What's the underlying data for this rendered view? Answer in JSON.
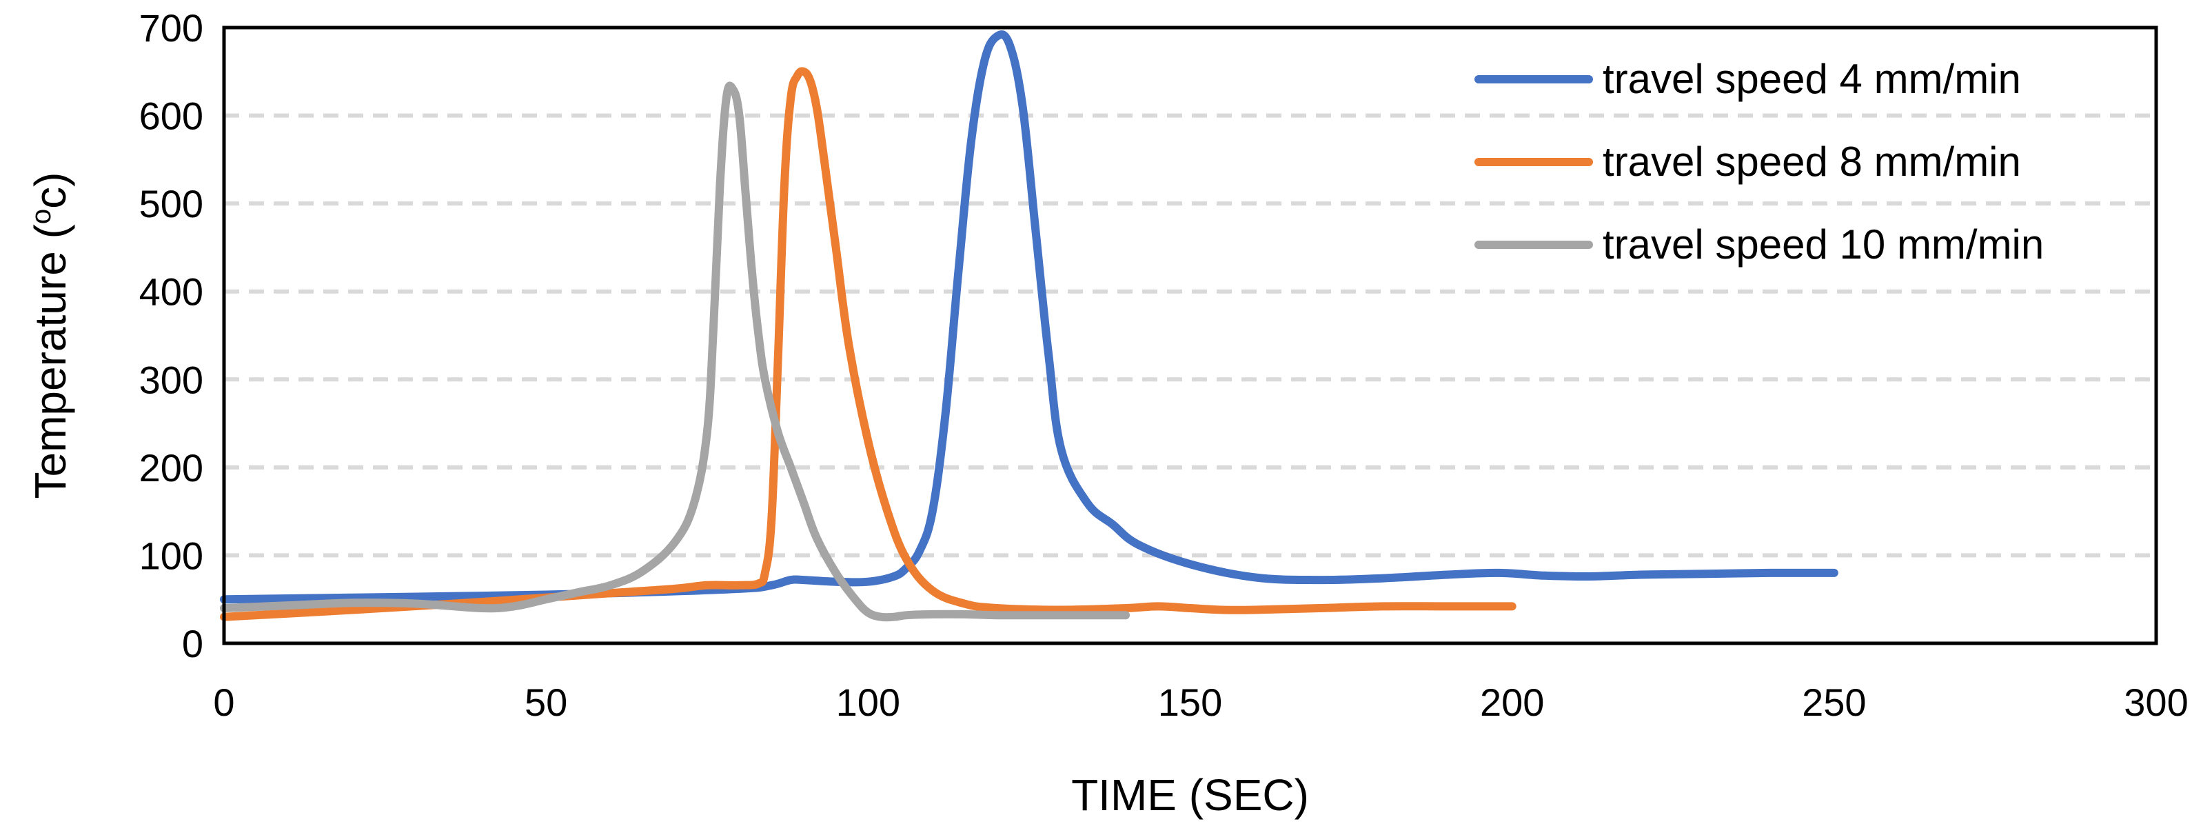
{
  "chart_data": {
    "type": "line",
    "title": "",
    "xlabel": "TIME (SEC)",
    "ylabel": "Temperature (oc)",
    "ylabel_parts": {
      "before": "Temperature (",
      "superscript": "o",
      "after": "c)"
    },
    "xlim": [
      0,
      300
    ],
    "ylim": [
      0,
      700
    ],
    "x_ticks": [
      0,
      50,
      100,
      150,
      200,
      250,
      300
    ],
    "y_ticks": [
      0,
      100,
      200,
      300,
      400,
      500,
      600,
      700
    ],
    "grid": "horizontal-dashed",
    "legend_position": "top-right",
    "series": [
      {
        "name": "travel speed 4 mm/min",
        "color": "#4472c4",
        "x": [
          0,
          20,
          40,
          60,
          80,
          85,
          88,
          90,
          95,
          100,
          104,
          106,
          108,
          110,
          112,
          114,
          116,
          118,
          120,
          122,
          124,
          126,
          128,
          130,
          134,
          138,
          142,
          150,
          160,
          170,
          180,
          190,
          198,
          205,
          212,
          220,
          230,
          240,
          250
        ],
        "y": [
          50,
          52,
          54,
          57,
          62,
          66,
          72,
          72,
          70,
          70,
          76,
          86,
          105,
          150,
          260,
          420,
          570,
          660,
          690,
          680,
          610,
          470,
          330,
          220,
          160,
          135,
          112,
          90,
          75,
          72,
          74,
          78,
          80,
          77,
          76,
          78,
          79,
          80,
          80
        ]
      },
      {
        "name": "travel speed 8 mm/min",
        "color": "#ed7d31",
        "x": [
          0,
          20,
          40,
          60,
          70,
          75,
          80,
          83,
          84,
          85,
          86,
          87,
          88,
          89,
          90,
          91,
          92,
          93,
          95,
          97,
          100,
          103,
          106,
          110,
          115,
          120,
          130,
          140,
          145,
          150,
          155,
          160,
          170,
          180,
          190,
          200
        ],
        "y": [
          30,
          38,
          47,
          57,
          62,
          66,
          66,
          68,
          80,
          140,
          320,
          520,
          620,
          645,
          650,
          640,
          610,
          560,
          450,
          340,
          230,
          150,
          95,
          60,
          45,
          40,
          38,
          40,
          42,
          40,
          38,
          38,
          40,
          42,
          42,
          42
        ]
      },
      {
        "name": "travel speed 10 mm/min",
        "color": "#a5a5a5",
        "x": [
          0,
          10,
          20,
          30,
          40,
          45,
          50,
          55,
          60,
          65,
          70,
          73,
          75,
          76,
          77,
          78,
          79,
          80,
          81,
          82,
          83,
          84,
          86,
          88,
          90,
          92,
          95,
          98,
          100,
          102,
          104,
          106,
          110,
          115,
          120,
          130,
          140
        ],
        "y": [
          40,
          43,
          46,
          45,
          40,
          42,
          50,
          58,
          66,
          82,
          115,
          160,
          240,
          360,
          520,
          620,
          630,
          600,
          510,
          420,
          350,
          300,
          240,
          200,
          160,
          120,
          80,
          50,
          35,
          30,
          30,
          32,
          33,
          33,
          32,
          32,
          32
        ]
      }
    ]
  }
}
